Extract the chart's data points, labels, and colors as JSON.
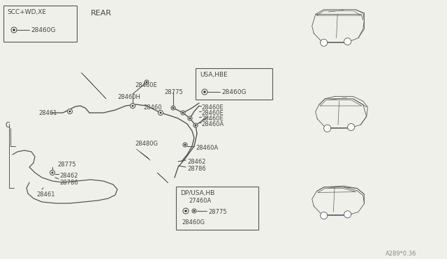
{
  "bg_color": "#f0f0eb",
  "line_color": "#555555",
  "text_color": "#444444",
  "part_number_stamp": "A289*0.36",
  "labels": {
    "SCC_WD_XE": "SCC+WD,XE",
    "REAR": "REAR",
    "USA_HBE": "USA,HBE",
    "C_label": "C",
    "DPUSA_HB": "DP/USA,HB",
    "part28460G": "28460G",
    "part28460E": "28460E",
    "part28460H": "28460H",
    "part28460": "28460",
    "part28460A": "28460A",
    "part28461": "28461",
    "part28462": "28462",
    "part28786": "28786",
    "part28775": "28775",
    "part28480G": "28480G",
    "part27460A": "27460A"
  }
}
